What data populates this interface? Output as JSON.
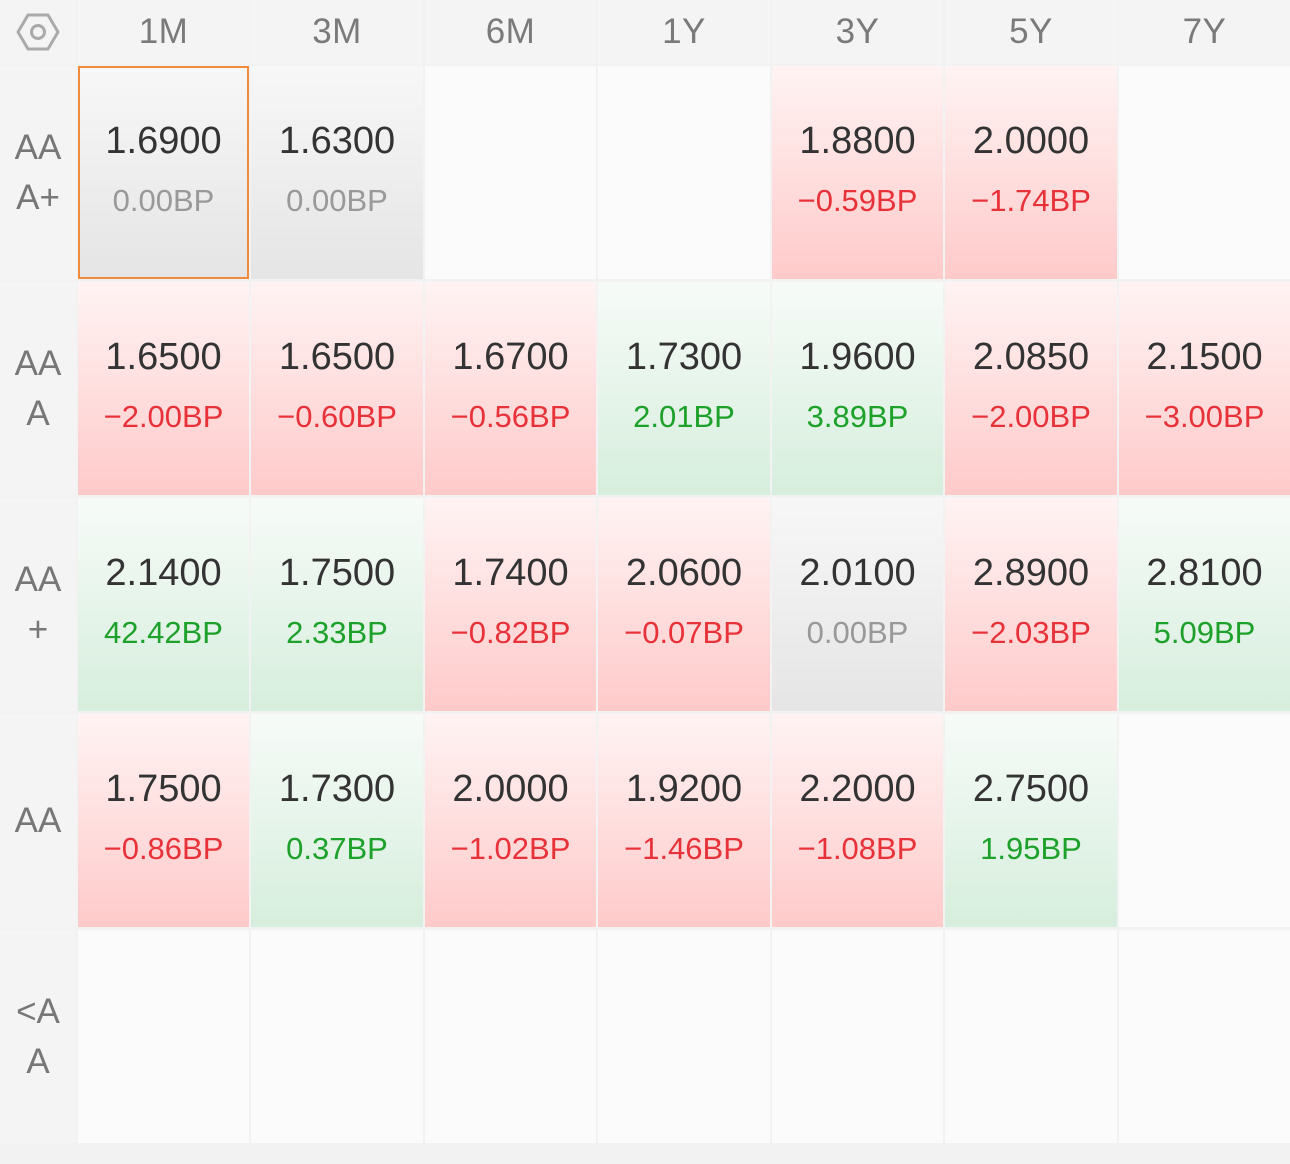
{
  "corner_icon": "hexagon-settings-icon",
  "columns": [
    "1M",
    "3M",
    "6M",
    "1Y",
    "3Y",
    "5Y",
    "7Y"
  ],
  "rows": [
    {
      "label": "AAA+",
      "cells": [
        {
          "rate": "1.6900",
          "change": "0.00BP",
          "trend": "gray",
          "selected": true
        },
        {
          "rate": "1.6300",
          "change": "0.00BP",
          "trend": "gray"
        },
        null,
        null,
        {
          "rate": "1.8800",
          "change": "−0.59BP",
          "trend": "red"
        },
        {
          "rate": "2.0000",
          "change": "−1.74BP",
          "trend": "red"
        },
        null
      ]
    },
    {
      "label": "AAA",
      "cells": [
        {
          "rate": "1.6500",
          "change": "−2.00BP",
          "trend": "red"
        },
        {
          "rate": "1.6500",
          "change": "−0.60BP",
          "trend": "red"
        },
        {
          "rate": "1.6700",
          "change": "−0.56BP",
          "trend": "red"
        },
        {
          "rate": "1.7300",
          "change": "2.01BP",
          "trend": "green"
        },
        {
          "rate": "1.9600",
          "change": "3.89BP",
          "trend": "green"
        },
        {
          "rate": "2.0850",
          "change": "−2.00BP",
          "trend": "red"
        },
        {
          "rate": "2.1500",
          "change": "−3.00BP",
          "trend": "red"
        }
      ]
    },
    {
      "label": "AA+",
      "cells": [
        {
          "rate": "2.1400",
          "change": "42.42BP",
          "trend": "green"
        },
        {
          "rate": "1.7500",
          "change": "2.33BP",
          "trend": "green"
        },
        {
          "rate": "1.7400",
          "change": "−0.82BP",
          "trend": "red"
        },
        {
          "rate": "2.0600",
          "change": "−0.07BP",
          "trend": "red"
        },
        {
          "rate": "2.0100",
          "change": "0.00BP",
          "trend": "gray"
        },
        {
          "rate": "2.8900",
          "change": "−2.03BP",
          "trend": "red"
        },
        {
          "rate": "2.8100",
          "change": "5.09BP",
          "trend": "green"
        }
      ]
    },
    {
      "label": "AA",
      "cells": [
        {
          "rate": "1.7500",
          "change": "−0.86BP",
          "trend": "red"
        },
        {
          "rate": "1.7300",
          "change": "0.37BP",
          "trend": "green"
        },
        {
          "rate": "2.0000",
          "change": "−1.02BP",
          "trend": "red"
        },
        {
          "rate": "1.9200",
          "change": "−1.46BP",
          "trend": "red"
        },
        {
          "rate": "2.2000",
          "change": "−1.08BP",
          "trend": "red"
        },
        {
          "rate": "2.7500",
          "change": "1.95BP",
          "trend": "green"
        },
        null
      ]
    },
    {
      "label": "<AA",
      "cells": [
        null,
        null,
        null,
        null,
        null,
        null,
        null
      ]
    }
  ]
}
